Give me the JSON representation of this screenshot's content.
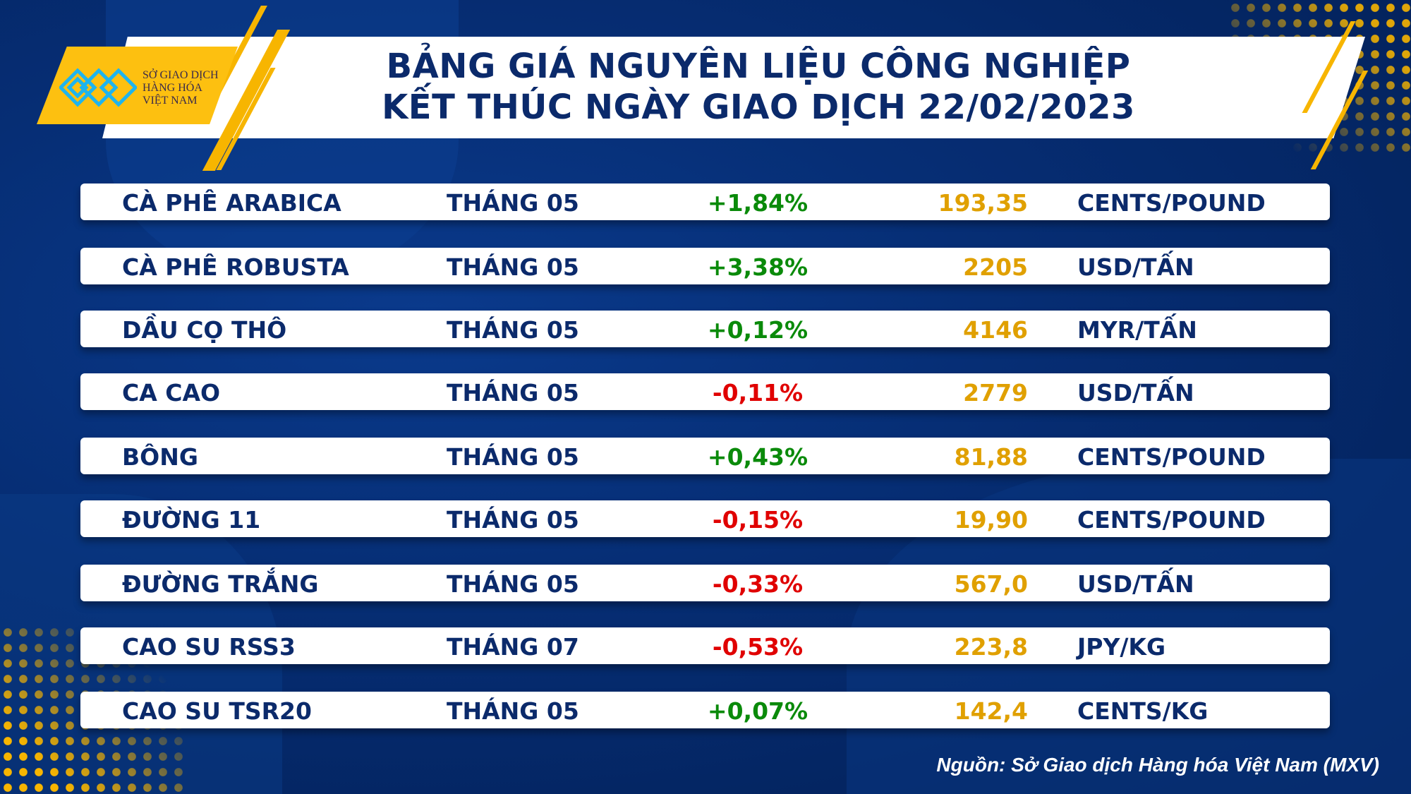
{
  "logo": {
    "line1": "SỞ GIAO DỊCH",
    "line2": "HÀNG HÓA",
    "line3": "VIỆT NAM"
  },
  "title": {
    "line1": "BẢNG GIÁ NGUYÊN LIỆU CÔNG NGHIỆP",
    "line2": "KẾT THÚC NGÀY GIAO DỊCH 22/02/2023"
  },
  "colors": {
    "up": "#0a8a0a",
    "down": "#e00000",
    "value": "#e0a000",
    "text": "#0b2a6b",
    "accent": "#f7b500"
  },
  "rows": [
    {
      "name": "CÀ PHÊ ARABICA",
      "month": "THÁNG 05",
      "change": "+1,84%",
      "dir": "up",
      "price": "193,35",
      "unit": "CENTS/POUND"
    },
    {
      "name": "CÀ PHÊ ROBUSTA",
      "month": "THÁNG 05",
      "change": "+3,38%",
      "dir": "up",
      "price": "2205",
      "unit": "USD/TẤN"
    },
    {
      "name": "DẦU CỌ THÔ",
      "month": "THÁNG 05",
      "change": "+0,12%",
      "dir": "up",
      "price": "4146",
      "unit": "MYR/TẤN"
    },
    {
      "name": "CA CAO",
      "month": "THÁNG 05",
      "change": "-0,11%",
      "dir": "down",
      "price": "2779",
      "unit": "USD/TẤN"
    },
    {
      "name": "BÔNG",
      "month": "THÁNG 05",
      "change": "+0,43%",
      "dir": "up",
      "price": "81,88",
      "unit": "CENTS/POUND"
    },
    {
      "name": "ĐƯỜNG 11",
      "month": "THÁNG 05",
      "change": "-0,15%",
      "dir": "down",
      "price": "19,90",
      "unit": "CENTS/POUND"
    },
    {
      "name": "ĐƯỜNG TRẮNG",
      "month": "THÁNG 05",
      "change": "-0,33%",
      "dir": "down",
      "price": "567,0",
      "unit": "USD/TẤN"
    },
    {
      "name": "CAO SU RSS3",
      "month": "THÁNG 07",
      "change": "-0,53%",
      "dir": "down",
      "price": "223,8",
      "unit": "JPY/KG"
    },
    {
      "name": "CAO SU TSR20",
      "month": "THÁNG 05",
      "change": "+0,07%",
      "dir": "up",
      "price": "142,4",
      "unit": "CENTS/KG"
    }
  ],
  "source": "Nguồn: Sở Giao dịch Hàng hóa Việt Nam (MXV)"
}
